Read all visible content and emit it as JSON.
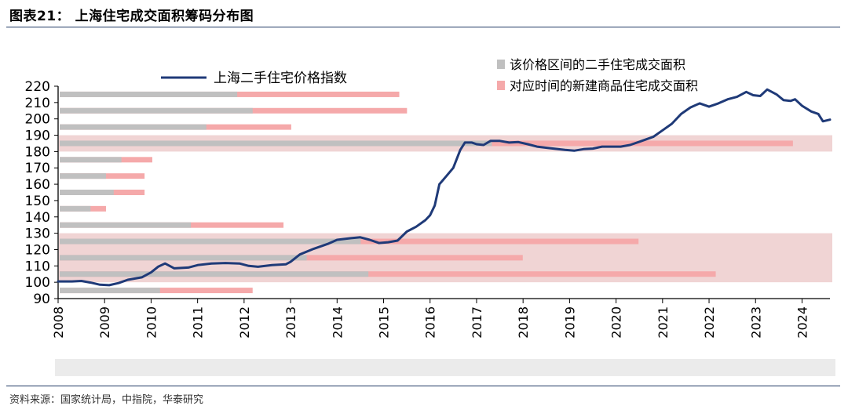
{
  "figure": {
    "title": "图表21：  上海住宅成交面积筹码分布图",
    "source": "资料来源：国家统计局，中指院，华泰研究"
  },
  "chart_data": {
    "type": "line",
    "legend": {
      "line": "上海二手住宅价格指数",
      "bar_grey": "该价格区间的二手住宅成交面积",
      "bar_pink": "对应时间的新建商品住宅成交面积"
    },
    "colors": {
      "line": "#1f3a78",
      "bar_grey": "#c0c0c0",
      "bar_pink": "#f5a9aa",
      "band": "#f0d4d4",
      "axis": "#000000",
      "baseline_band": "#ebebeb"
    },
    "x_ticks": [
      "2008",
      "2009",
      "2010",
      "2011",
      "2012",
      "2013",
      "2014",
      "2015",
      "2016",
      "2017",
      "2018",
      "2019",
      "2020",
      "2021",
      "2022",
      "2023",
      "2024"
    ],
    "y_ticks": [
      "90",
      "100",
      "110",
      "120",
      "130",
      "140",
      "150",
      "160",
      "170",
      "180",
      "190",
      "200",
      "210",
      "220"
    ],
    "xlim": [
      2008.0,
      2024.6
    ],
    "ylim": [
      90,
      220
    ],
    "series": [
      {
        "name": "上海二手住宅价格指数",
        "points": [
          [
            2008.0,
            100.5
          ],
          [
            2008.3,
            100.5
          ],
          [
            2008.5,
            100.8
          ],
          [
            2008.7,
            99.8
          ],
          [
            2008.9,
            98.5
          ],
          [
            2009.1,
            98.2
          ],
          [
            2009.3,
            99.5
          ],
          [
            2009.5,
            101.5
          ],
          [
            2009.8,
            103.0
          ],
          [
            2010.0,
            106.0
          ],
          [
            2010.15,
            109.5
          ],
          [
            2010.3,
            111.5
          ],
          [
            2010.5,
            108.5
          ],
          [
            2010.8,
            109.0
          ],
          [
            2011.0,
            110.5
          ],
          [
            2011.3,
            111.5
          ],
          [
            2011.6,
            111.8
          ],
          [
            2011.9,
            111.5
          ],
          [
            2012.1,
            110.0
          ],
          [
            2012.3,
            109.5
          ],
          [
            2012.6,
            110.5
          ],
          [
            2012.9,
            111.0
          ],
          [
            2013.0,
            112.5
          ],
          [
            2013.2,
            117.0
          ],
          [
            2013.5,
            120.5
          ],
          [
            2013.8,
            123.5
          ],
          [
            2014.0,
            126.0
          ],
          [
            2014.3,
            127.0
          ],
          [
            2014.5,
            127.5
          ],
          [
            2014.7,
            126.0
          ],
          [
            2014.9,
            124.0
          ],
          [
            2015.1,
            124.5
          ],
          [
            2015.3,
            125.5
          ],
          [
            2015.5,
            131.0
          ],
          [
            2015.7,
            134.0
          ],
          [
            2015.9,
            138.0
          ],
          [
            2016.0,
            141.0
          ],
          [
            2016.1,
            147.0
          ],
          [
            2016.2,
            160.0
          ],
          [
            2016.35,
            165.0
          ],
          [
            2016.5,
            170.0
          ],
          [
            2016.65,
            181.0
          ],
          [
            2016.75,
            185.5
          ],
          [
            2016.9,
            185.5
          ],
          [
            2017.0,
            184.5
          ],
          [
            2017.15,
            184.0
          ],
          [
            2017.3,
            186.5
          ],
          [
            2017.5,
            186.5
          ],
          [
            2017.7,
            185.5
          ],
          [
            2017.9,
            185.8
          ],
          [
            2018.1,
            184.5
          ],
          [
            2018.3,
            183.0
          ],
          [
            2018.6,
            182.0
          ],
          [
            2018.9,
            181.0
          ],
          [
            2019.1,
            180.5
          ],
          [
            2019.3,
            181.5
          ],
          [
            2019.5,
            181.8
          ],
          [
            2019.7,
            183.0
          ],
          [
            2019.9,
            183.0
          ],
          [
            2020.1,
            183.0
          ],
          [
            2020.3,
            184.0
          ],
          [
            2020.5,
            186.0
          ],
          [
            2020.8,
            189.0
          ],
          [
            2021.0,
            193.0
          ],
          [
            2021.2,
            197.0
          ],
          [
            2021.4,
            203.0
          ],
          [
            2021.6,
            207.0
          ],
          [
            2021.8,
            209.5
          ],
          [
            2022.0,
            207.5
          ],
          [
            2022.2,
            209.5
          ],
          [
            2022.4,
            212.0
          ],
          [
            2022.6,
            213.5
          ],
          [
            2022.8,
            216.5
          ],
          [
            2022.95,
            214.5
          ],
          [
            2023.1,
            214.0
          ],
          [
            2023.25,
            218.0
          ],
          [
            2023.45,
            215.0
          ],
          [
            2023.6,
            211.5
          ],
          [
            2023.75,
            211.0
          ],
          [
            2023.85,
            212.0
          ],
          [
            2024.0,
            208.0
          ],
          [
            2024.2,
            204.5
          ],
          [
            2024.35,
            203.0
          ],
          [
            2024.45,
            198.5
          ],
          [
            2024.6,
            199.5
          ]
        ]
      }
    ],
    "bars": [
      {
        "price_level": 215,
        "grey": 0.23,
        "pink": 0.44
      },
      {
        "price_level": 205,
        "grey": 0.25,
        "pink": 0.45
      },
      {
        "price_level": 195,
        "grey": 0.19,
        "pink": 0.3
      },
      {
        "price_level": 185,
        "grey": 0.56,
        "pink": 0.95
      },
      {
        "price_level": 175,
        "grey": 0.08,
        "pink": 0.12
      },
      {
        "price_level": 165,
        "grey": 0.06,
        "pink": 0.11
      },
      {
        "price_level": 155,
        "grey": 0.07,
        "pink": 0.11
      },
      {
        "price_level": 145,
        "grey": 0.04,
        "pink": 0.06
      },
      {
        "price_level": 135,
        "grey": 0.17,
        "pink": 0.29
      },
      {
        "price_level": 125,
        "grey": 0.39,
        "pink": 0.75
      },
      {
        "price_level": 115,
        "grey": 0.32,
        "pink": 0.6
      },
      {
        "price_level": 105,
        "grey": 0.4,
        "pink": 0.85
      },
      {
        "price_level": 95,
        "grey": 0.13,
        "pink": 0.25
      }
    ],
    "bands": [
      {
        "from": 100,
        "to": 130
      },
      {
        "from": 180,
        "to": 190
      }
    ],
    "grid": false
  }
}
